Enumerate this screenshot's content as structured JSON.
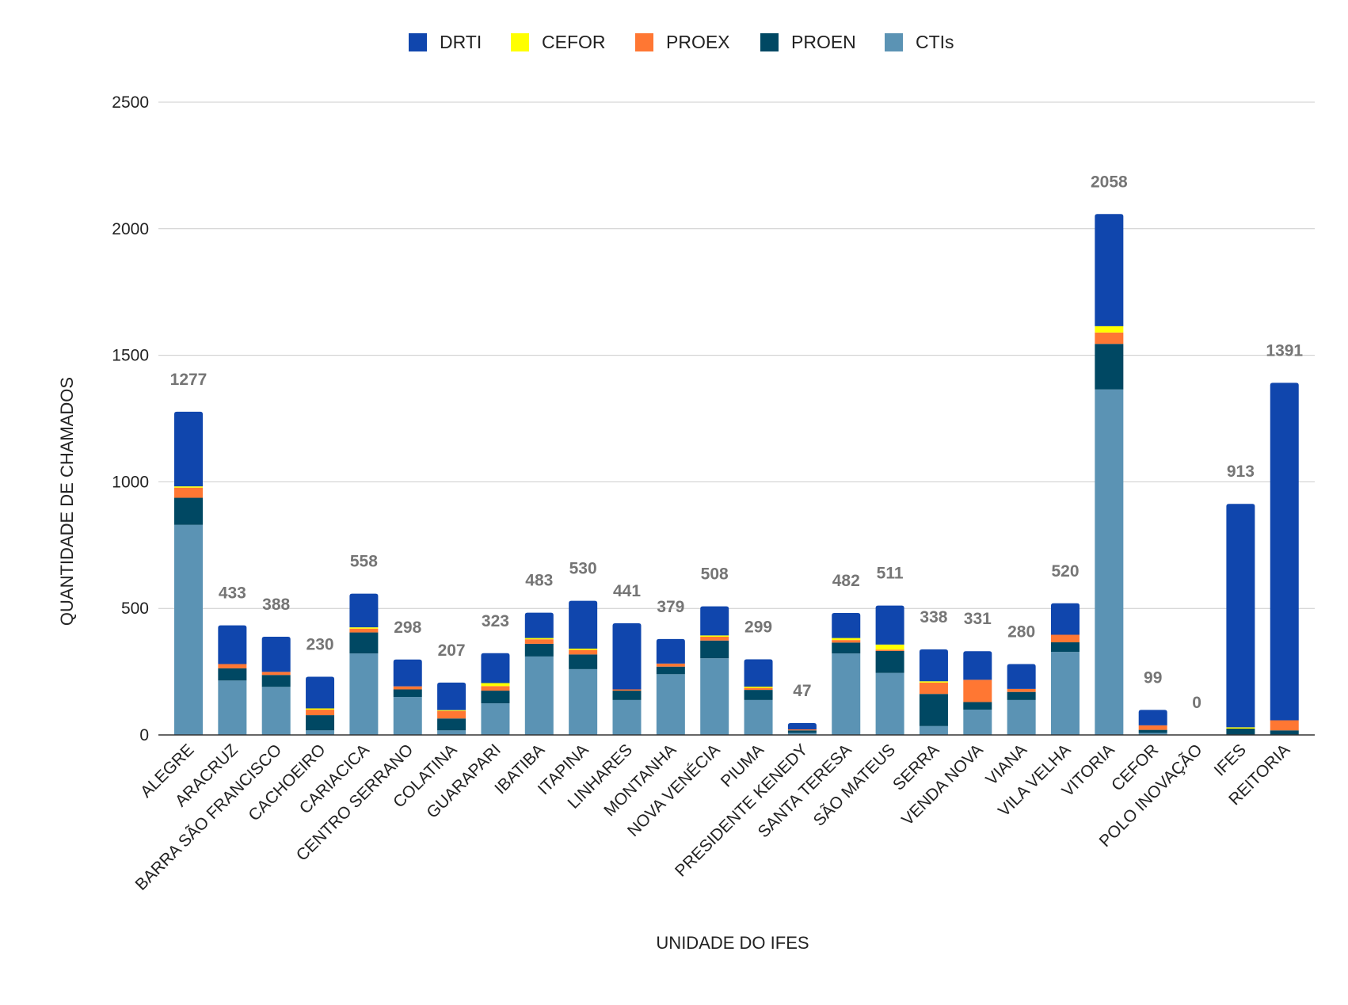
{
  "chart_data": {
    "type": "bar",
    "stacked": true,
    "title": "",
    "xlabel": "UNIDADE DO IFES",
    "ylabel": "QUANTIDADE DE CHAMADOS",
    "ylim": [
      0,
      2500
    ],
    "yticks": [
      0,
      500,
      1000,
      1500,
      2000,
      2500
    ],
    "legend_position": "top-center",
    "categories": [
      "ALEGRE",
      "ARACRUZ",
      "BARRA SÃO FRANCISCO",
      "CACHOEIRO",
      "CARIACICA",
      "CENTRO SERRANO",
      "COLATINA",
      "GUARAPARI",
      "IBATIBA",
      "ITAPINA",
      "LINHARES",
      "MONTANHA",
      "NOVA VENÉCIA",
      "PIUMA",
      "PRESIDENTE KENEDY",
      "SANTA TERESA",
      "SÃO MATEUS",
      "SERRA",
      "VENDA NOVA",
      "VIANA",
      "VILA VELHA",
      "VITORIA",
      "CEFOR",
      "POLO INOVAÇÃO",
      "IFES",
      "REITORIA"
    ],
    "totals": [
      1277,
      433,
      388,
      230,
      558,
      298,
      207,
      323,
      483,
      530,
      441,
      379,
      508,
      299,
      47,
      482,
      511,
      338,
      331,
      280,
      520,
      2058,
      99,
      0,
      913,
      1391
    ],
    "series": [
      {
        "name": "CTIs",
        "color": "#5b93b4",
        "values": [
          830,
          215,
          190,
          18,
          322,
          150,
          18,
          125,
          310,
          260,
          138,
          240,
          303,
          138,
          8,
          322,
          245,
          35,
          100,
          138,
          328,
          1365,
          8,
          0,
          0,
          0
        ]
      },
      {
        "name": "PROEN",
        "color": "#004863",
        "values": [
          107,
          48,
          47,
          60,
          83,
          30,
          47,
          50,
          50,
          58,
          37,
          30,
          70,
          40,
          10,
          43,
          87,
          127,
          30,
          32,
          38,
          180,
          12,
          0,
          25,
          18
        ]
      },
      {
        "name": "PROEX",
        "color": "#ff7733",
        "values": [
          40,
          17,
          12,
          22,
          15,
          12,
          30,
          18,
          18,
          18,
          5,
          12,
          15,
          8,
          4,
          10,
          5,
          45,
          88,
          12,
          30,
          45,
          18,
          0,
          0,
          40
        ]
      },
      {
        "name": "CEFOR",
        "color": "#ffff00",
        "values": [
          5,
          0,
          0,
          5,
          5,
          0,
          3,
          12,
          5,
          5,
          0,
          0,
          5,
          5,
          0,
          8,
          20,
          5,
          0,
          0,
          0,
          25,
          0,
          0,
          5,
          0
        ]
      },
      {
        "name": "DRTI",
        "color": "#1046ad",
        "values": [
          295,
          153,
          139,
          125,
          133,
          106,
          109,
          118,
          100,
          189,
          261,
          97,
          115,
          108,
          25,
          99,
          154,
          126,
          113,
          98,
          124,
          443,
          61,
          0,
          883,
          1333
        ]
      }
    ],
    "legend_order": [
      "DRTI",
      "CEFOR",
      "PROEX",
      "PROEN",
      "CTIs"
    ]
  }
}
